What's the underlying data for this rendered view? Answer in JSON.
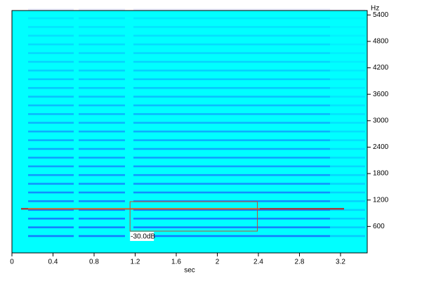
{
  "chart_data": {
    "type": "spectrogram",
    "x_label": "sec",
    "y_label": "Hz",
    "xlim": [
      0,
      3.46
    ],
    "xticks": [
      0,
      0.4,
      0.8,
      1.2,
      1.6,
      2,
      2.4,
      2.8,
      3.2
    ],
    "ylim": [
      0,
      5500
    ],
    "yticks": [
      600,
      1200,
      1800,
      2400,
      3000,
      3600,
      4200,
      4800,
      5400
    ],
    "background": "#00ffff",
    "band_color": "#1a4cff",
    "selection": {
      "x": [
        1.15,
        2.39
      ],
      "y": [
        494,
        1164
      ],
      "label": "-30.0dB",
      "color": "#c05030"
    }
  }
}
